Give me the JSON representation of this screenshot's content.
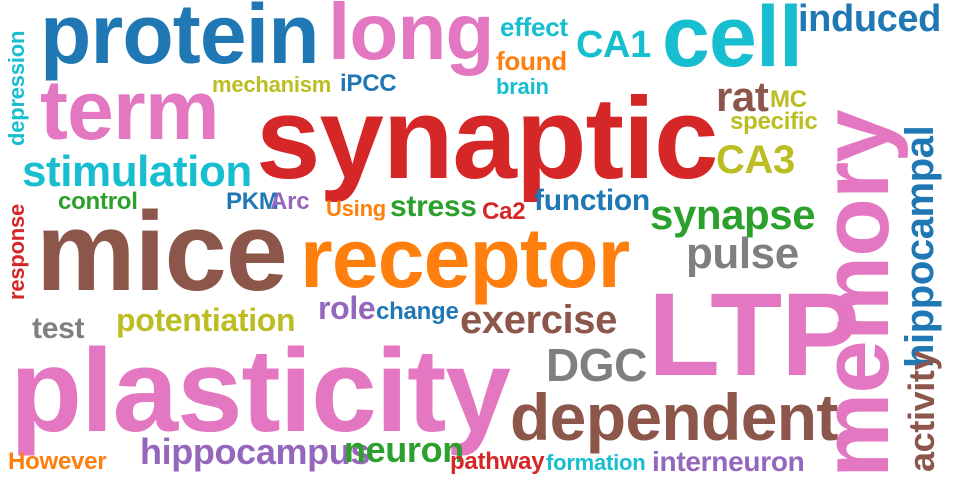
{
  "colors": {
    "red": "#d62728",
    "blue": "#1f77b4",
    "pink": "#e377c2",
    "brown": "#8c564b",
    "orange": "#ff7f0e",
    "cyan": "#17becf",
    "green": "#2ca02c",
    "olive": "#bcbd22",
    "gray": "#7f7f7f",
    "purple": "#9467bd"
  },
  "words": {
    "synaptic": "synaptic",
    "mice": "mice",
    "plasticity": "plasticity",
    "receptor": "receptor",
    "LTP": "LTP",
    "memory": "memory",
    "protein": "protein",
    "long": "long",
    "cell": "cell",
    "term": "term",
    "dependent": "dependent",
    "stimulation": "stimulation",
    "hippocampal": "hippocampal",
    "induced": "induced",
    "synapse": "synapse",
    "exercise": "exercise",
    "pulse": "pulse",
    "DGC": "DGC",
    "activity": "activity",
    "hippocampus": "hippocampus",
    "neuron": "neuron",
    "interneuron": "interneuron",
    "potentiation": "potentiation",
    "CA1": "CA1",
    "CA3": "CA3",
    "rat": "rat",
    "MC": "MC",
    "specific": "specific",
    "effect": "effect",
    "found": "found",
    "brain": "brain",
    "iPCC": "iPCC",
    "mechanism": "mechanism",
    "depression": "depression",
    "response": "response",
    "control": "control",
    "PKM": "PKM",
    "Arc": "Arc",
    "Using": "Using",
    "stress": "stress",
    "Ca2": "Ca2",
    "function": "function",
    "role": "role",
    "change": "change",
    "test": "test",
    "However": "However",
    "pathway": "pathway",
    "formation": "formation"
  }
}
